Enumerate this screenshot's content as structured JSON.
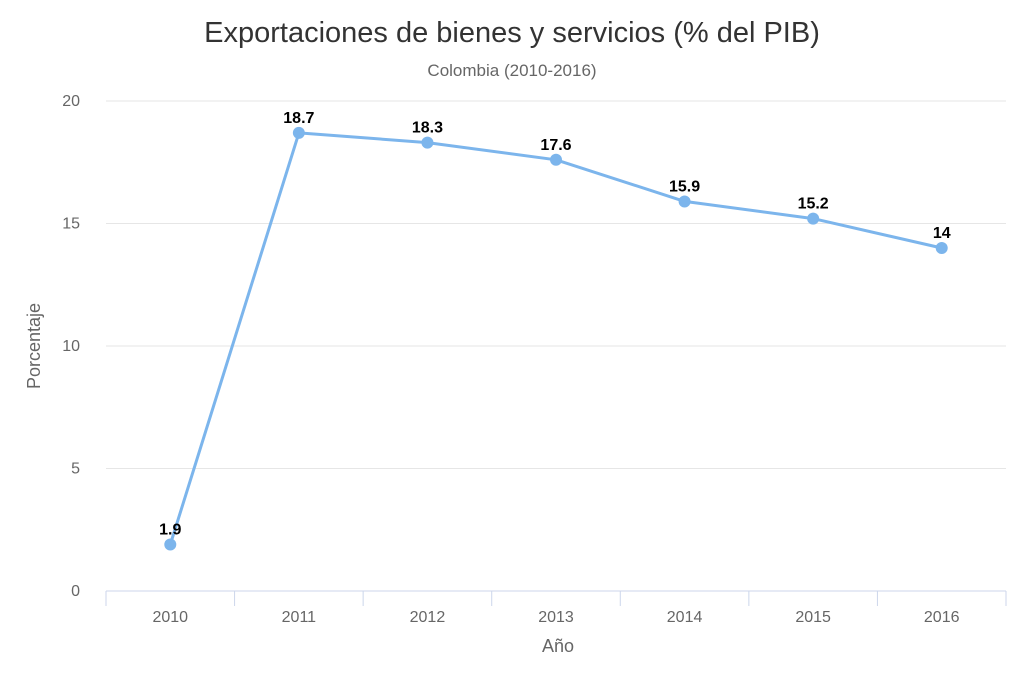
{
  "chart_data": {
    "type": "line",
    "title": "Exportaciones de bienes y servicios (% del PIB)",
    "subtitle": "Colombia (2010-2016)",
    "xlabel": "Año",
    "ylabel": "Porcentaje",
    "categories": [
      "2010",
      "2011",
      "2012",
      "2013",
      "2014",
      "2015",
      "2016"
    ],
    "series": [
      {
        "values": [
          1.9,
          18.7,
          18.3,
          17.6,
          15.9,
          15.2,
          14
        ]
      }
    ],
    "data_labels": [
      "1.9",
      "18.7",
      "18.3",
      "17.6",
      "15.9",
      "15.2",
      "14"
    ],
    "ylim": [
      0,
      20
    ],
    "yticks": [
      0,
      5,
      10,
      15,
      20
    ],
    "grid": true,
    "legend": "none",
    "colors": {
      "line": "#7cb5ec",
      "grid": "#e6e6e6",
      "axis": "#ccd6eb"
    }
  }
}
